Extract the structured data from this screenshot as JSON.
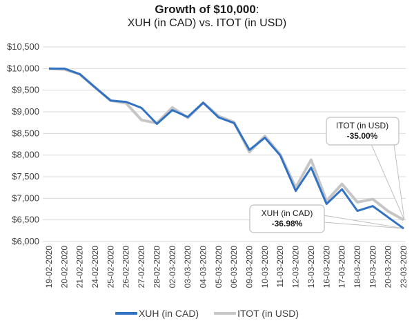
{
  "title": {
    "bold": "Growth of $10,000",
    "colon": ":",
    "subtitle": "XUH (in CAD) vs. ITOT (in USD)"
  },
  "colors": {
    "xuh": "#3272c2",
    "itot": "#c6c6c6",
    "grid": "#d9d9d9",
    "callout_border": "#bfbfbf"
  },
  "legend": [
    {
      "label": "XUH (in CAD)",
      "color": "#3272c2"
    },
    {
      "label": "ITOT (in USD)",
      "color": "#c6c6c6"
    }
  ],
  "callouts": {
    "itot": {
      "label": "ITOT (in USD)",
      "value": "-35.00%"
    },
    "xuh": {
      "label": "XUH (in CAD)",
      "value": "-36.98%"
    }
  },
  "chart_data": {
    "type": "line",
    "title": "Growth of $10,000: XUH (in CAD) vs. ITOT (in USD)",
    "xlabel": "",
    "ylabel": "",
    "ylim": [
      6000,
      10500
    ],
    "yticks": [
      6000,
      6500,
      7000,
      7500,
      8000,
      8500,
      9000,
      9500,
      10000,
      10500
    ],
    "ytick_labels": [
      "$6,000",
      "$6,500",
      "$7,000",
      "$7,500",
      "$8,000",
      "$8,500",
      "$9,000",
      "$9,500",
      "$10,000",
      "$10,500"
    ],
    "grid": true,
    "legend_position": "bottom",
    "categories": [
      "19-02-2020",
      "20-02-2020",
      "21-02-2020",
      "24-02-2020",
      "25-02-2020",
      "26-02-2020",
      "27-02-2020",
      "28-02-2020",
      "02-03-2020",
      "03-03-2020",
      "04-03-2020",
      "05-03-2020",
      "06-03-2020",
      "09-03-2020",
      "10-03-2020",
      "11-03-2020",
      "12-03-2020",
      "13-03-2020",
      "16-03-2020",
      "17-03-2020",
      "18-03-2020",
      "19-03-2020",
      "20-03-2020",
      "23-03-2020"
    ],
    "series": [
      {
        "name": "XUH (in CAD)",
        "values": [
          10000,
          10000,
          9870,
          9560,
          9260,
          9230,
          9090,
          8720,
          9040,
          8880,
          9210,
          8870,
          8740,
          8120,
          8400,
          7990,
          7170,
          7710,
          6870,
          7210,
          6710,
          6820,
          6560,
          6302
        ]
      },
      {
        "name": "ITOT (in USD)",
        "values": [
          10000,
          9980,
          9870,
          9560,
          9260,
          9200,
          8810,
          8740,
          9100,
          8860,
          9210,
          8900,
          8760,
          8070,
          8440,
          8010,
          7250,
          7890,
          6940,
          7330,
          6910,
          6980,
          6700,
          6500
        ]
      }
    ],
    "annotations": [
      {
        "text": "ITOT (in USD) -35.00%",
        "target": "23-03-2020",
        "series": "ITOT (in USD)"
      },
      {
        "text": "XUH (in CAD) -36.98%",
        "target": "23-03-2020",
        "series": "XUH (in CAD)"
      }
    ]
  }
}
